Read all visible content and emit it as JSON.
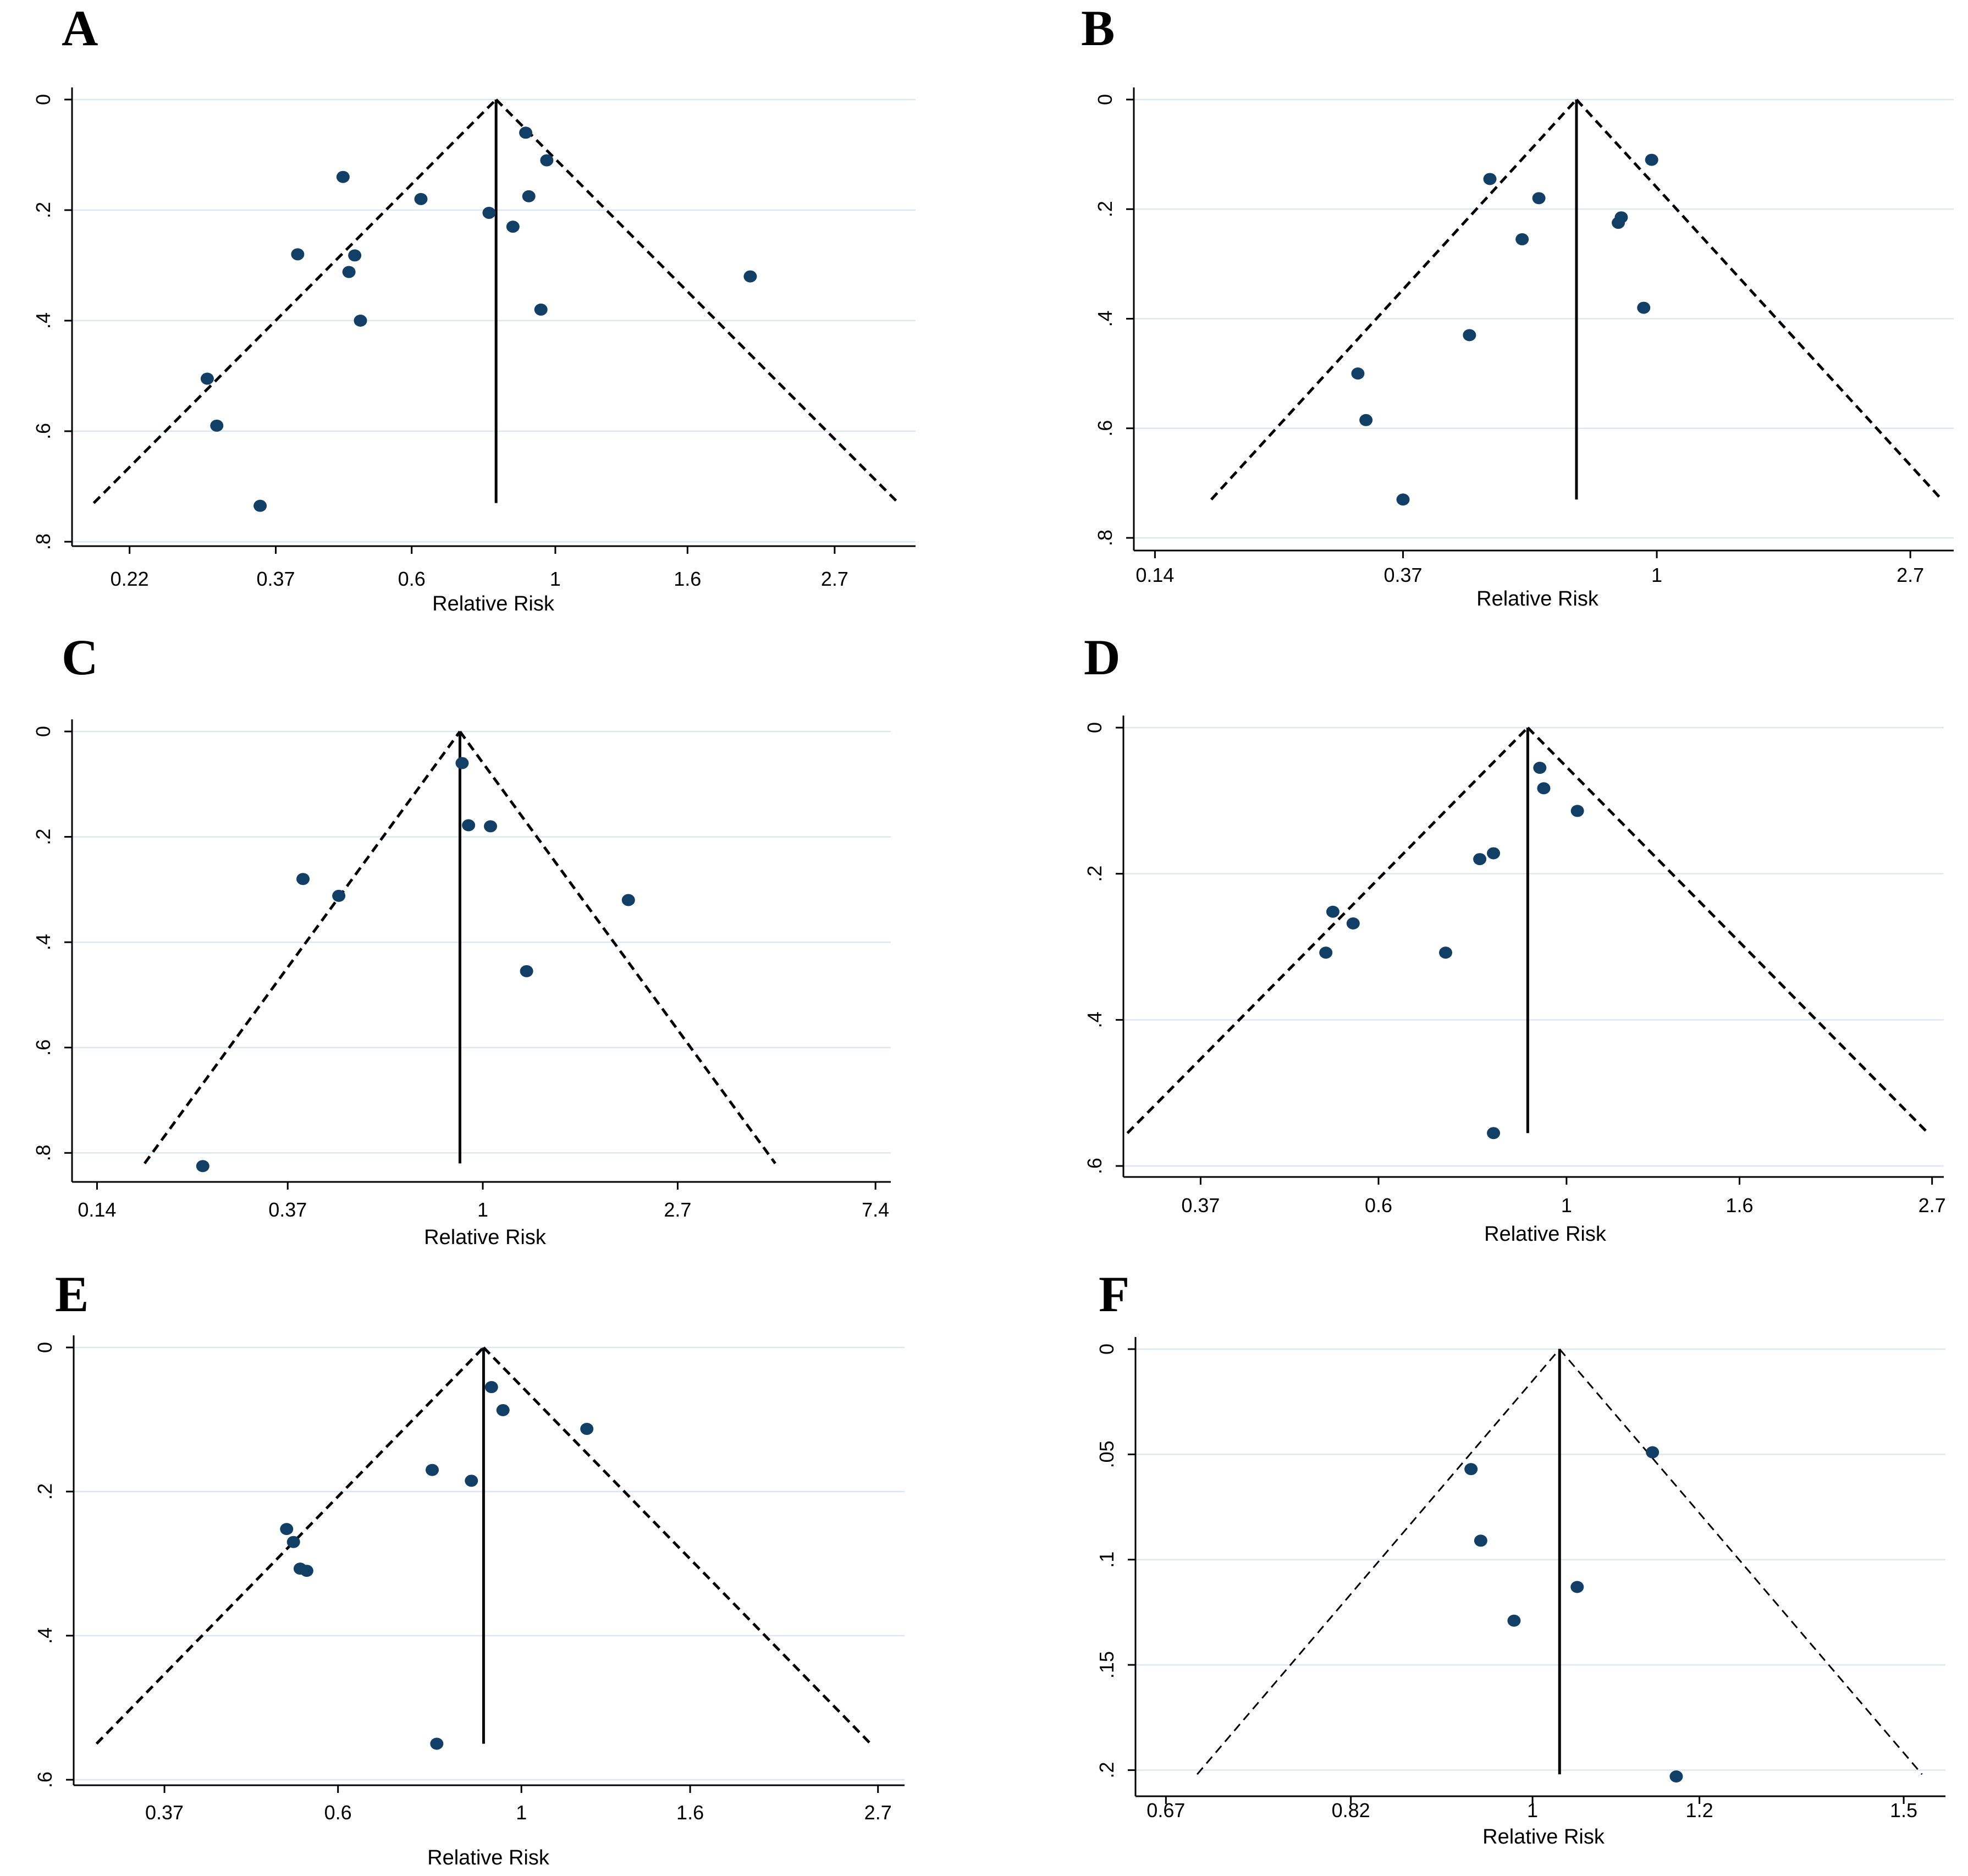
{
  "chart_data": [
    {
      "type": "scatter",
      "panel": "A",
      "xlabel": "Relative Risk",
      "ylabel": "",
      "x_scale": "log",
      "x_ticks": [
        {
          "value": 0.22,
          "label": "0.22"
        },
        {
          "value": 0.37,
          "label": "0.37"
        },
        {
          "value": 0.6,
          "label": "0.6"
        },
        {
          "value": 1,
          "label": "1"
        },
        {
          "value": 1.6,
          "label": "1.6"
        },
        {
          "value": 2.7,
          "label": "2.7"
        }
      ],
      "y_ticks": [
        {
          "value": 0,
          "label": "0"
        },
        {
          "value": 0.2,
          "label": ".2"
        },
        {
          "value": 0.4,
          "label": ".4"
        },
        {
          "value": 0.6,
          "label": ".6"
        },
        {
          "value": 0.8,
          "label": ".8"
        }
      ],
      "xlim": [
        0.18,
        3.6
      ],
      "ylim": [
        0,
        0.8
      ],
      "pooled_rr": 0.81,
      "funnel_max_se": 0.73,
      "points": [
        {
          "x": 0.9,
          "y": 0.06
        },
        {
          "x": 0.97,
          "y": 0.11
        },
        {
          "x": 0.47,
          "y": 0.14
        },
        {
          "x": 0.62,
          "y": 0.18
        },
        {
          "x": 0.91,
          "y": 0.175
        },
        {
          "x": 0.79,
          "y": 0.205
        },
        {
          "x": 0.86,
          "y": 0.23
        },
        {
          "x": 0.4,
          "y": 0.28
        },
        {
          "x": 0.49,
          "y": 0.282
        },
        {
          "x": 0.48,
          "y": 0.312
        },
        {
          "x": 2.0,
          "y": 0.32
        },
        {
          "x": 0.95,
          "y": 0.38
        },
        {
          "x": 0.5,
          "y": 0.4
        },
        {
          "x": 0.29,
          "y": 0.505
        },
        {
          "x": 0.3,
          "y": 0.59
        },
        {
          "x": 0.35,
          "y": 0.735
        }
      ]
    },
    {
      "type": "scatter",
      "panel": "B",
      "xlabel": "Relative Risk",
      "ylabel": "",
      "x_scale": "log",
      "x_ticks": [
        {
          "value": 0.14,
          "label": "0.14"
        },
        {
          "value": 0.37,
          "label": "0.37"
        },
        {
          "value": 1,
          "label": "1"
        },
        {
          "value": 2.7,
          "label": "2.7"
        }
      ],
      "y_ticks": [
        {
          "value": 0,
          "label": "0"
        },
        {
          "value": 0.2,
          "label": ".2"
        },
        {
          "value": 0.4,
          "label": ".4"
        },
        {
          "value": 0.6,
          "label": ".6"
        },
        {
          "value": 0.8,
          "label": ".8"
        }
      ],
      "xlim": [
        0.13,
        3.2
      ],
      "ylim": [
        0,
        0.8
      ],
      "pooled_rr": 0.73,
      "funnel_max_se": 0.73,
      "points": [
        {
          "x": 0.98,
          "y": 0.11
        },
        {
          "x": 0.52,
          "y": 0.145
        },
        {
          "x": 0.63,
          "y": 0.18
        },
        {
          "x": 0.87,
          "y": 0.215
        },
        {
          "x": 0.86,
          "y": 0.225
        },
        {
          "x": 0.59,
          "y": 0.255
        },
        {
          "x": 0.95,
          "y": 0.38
        },
        {
          "x": 0.48,
          "y": 0.43
        },
        {
          "x": 0.31,
          "y": 0.5
        },
        {
          "x": 0.32,
          "y": 0.585
        },
        {
          "x": 0.37,
          "y": 0.73
        }
      ]
    },
    {
      "type": "scatter",
      "panel": "C",
      "xlabel": "Relative Risk",
      "ylabel": "",
      "x_scale": "log",
      "x_ticks": [
        {
          "value": 0.14,
          "label": "0.14"
        },
        {
          "value": 0.37,
          "label": "0.37"
        },
        {
          "value": 1,
          "label": "1"
        },
        {
          "value": 2.7,
          "label": "2.7"
        },
        {
          "value": 7.4,
          "label": "7.4"
        }
      ],
      "y_ticks": [
        {
          "value": 0,
          "label": "0"
        },
        {
          "value": 0.2,
          "label": ".2"
        },
        {
          "value": 0.4,
          "label": ".4"
        },
        {
          "value": 0.6,
          "label": ".6"
        },
        {
          "value": 0.8,
          "label": ".8"
        }
      ],
      "xlim": [
        0.13,
        8.0
      ],
      "ylim": [
        0,
        0.83
      ],
      "pooled_rr": 0.89,
      "funnel_max_se": 0.82,
      "points": [
        {
          "x": 0.9,
          "y": 0.06
        },
        {
          "x": 0.93,
          "y": 0.178
        },
        {
          "x": 1.04,
          "y": 0.18
        },
        {
          "x": 0.4,
          "y": 0.28
        },
        {
          "x": 0.48,
          "y": 0.312
        },
        {
          "x": 2.1,
          "y": 0.32
        },
        {
          "x": 1.25,
          "y": 0.455
        },
        {
          "x": 0.24,
          "y": 0.825
        }
      ]
    },
    {
      "type": "scatter",
      "panel": "D",
      "xlabel": "Relative Risk",
      "ylabel": "",
      "x_scale": "log",
      "x_ticks": [
        {
          "value": 0.37,
          "label": "0.37"
        },
        {
          "value": 0.6,
          "label": "0.6"
        },
        {
          "value": 1,
          "label": "1"
        },
        {
          "value": 1.6,
          "label": "1.6"
        },
        {
          "value": 2.7,
          "label": "2.7"
        }
      ],
      "y_ticks": [
        {
          "value": 0,
          "label": "0"
        },
        {
          "value": 0.2,
          "label": ".2"
        },
        {
          "value": 0.4,
          "label": ".4"
        },
        {
          "value": 0.6,
          "label": ".6"
        }
      ],
      "xlim": [
        0.31,
        2.8
      ],
      "ylim": [
        0,
        0.6
      ],
      "pooled_rr": 0.9,
      "funnel_max_se": 0.555,
      "points": [
        {
          "x": 0.93,
          "y": 0.055
        },
        {
          "x": 0.94,
          "y": 0.083
        },
        {
          "x": 1.03,
          "y": 0.114
        },
        {
          "x": 0.82,
          "y": 0.172
        },
        {
          "x": 0.79,
          "y": 0.18
        },
        {
          "x": 0.53,
          "y": 0.252
        },
        {
          "x": 0.56,
          "y": 0.268
        },
        {
          "x": 0.52,
          "y": 0.308
        },
        {
          "x": 0.72,
          "y": 0.308
        },
        {
          "x": 0.82,
          "y": 0.555
        }
      ]
    },
    {
      "type": "scatter",
      "panel": "E",
      "xlabel": "Relative Risk",
      "ylabel": "",
      "x_scale": "log",
      "x_ticks": [
        {
          "value": 0.37,
          "label": "0.37"
        },
        {
          "value": 0.6,
          "label": "0.6"
        },
        {
          "value": 1,
          "label": "1"
        },
        {
          "value": 1.6,
          "label": "1.6"
        },
        {
          "value": 2.7,
          "label": "2.7"
        }
      ],
      "y_ticks": [
        {
          "value": 0,
          "label": "0"
        },
        {
          "value": 0.2,
          "label": ".2"
        },
        {
          "value": 0.4,
          "label": ".4"
        },
        {
          "value": 0.6,
          "label": ".6"
        }
      ],
      "xlim": [
        0.29,
        2.85
      ],
      "ylim": [
        0,
        0.6
      ],
      "pooled_rr": 0.9,
      "funnel_max_se": 0.55,
      "points": [
        {
          "x": 0.92,
          "y": 0.055
        },
        {
          "x": 0.95,
          "y": 0.087
        },
        {
          "x": 1.2,
          "y": 0.113
        },
        {
          "x": 0.78,
          "y": 0.17
        },
        {
          "x": 0.87,
          "y": 0.185
        },
        {
          "x": 0.52,
          "y": 0.252
        },
        {
          "x": 0.53,
          "y": 0.27
        },
        {
          "x": 0.54,
          "y": 0.307
        },
        {
          "x": 0.55,
          "y": 0.31
        },
        {
          "x": 0.79,
          "y": 0.55
        }
      ]
    },
    {
      "type": "scatter",
      "panel": "F",
      "xlabel": "Relative Risk",
      "ylabel": "",
      "x_scale": "log",
      "x_ticks": [
        {
          "value": 0.67,
          "label": "0.67"
        },
        {
          "value": 0.82,
          "label": "0.82"
        },
        {
          "value": 1,
          "label": "1"
        },
        {
          "value": 1.2,
          "label": "1.2"
        },
        {
          "value": 1.5,
          "label": "1.5"
        }
      ],
      "y_ticks": [
        {
          "value": 0,
          "label": "0"
        },
        {
          "value": 0.05,
          "label": ".05"
        },
        {
          "value": 0.1,
          "label": ".1"
        },
        {
          "value": 0.15,
          "label": ".15"
        },
        {
          "value": 0.2,
          "label": ".2"
        }
      ],
      "xlim": [
        0.652,
        1.57
      ],
      "ylim": [
        0,
        0.203
      ],
      "pooled_rr": 1.03,
      "funnel_max_se": 0.202,
      "points": [
        {
          "x": 1.14,
          "y": 0.049
        },
        {
          "x": 0.935,
          "y": 0.057
        },
        {
          "x": 0.945,
          "y": 0.091
        },
        {
          "x": 1.05,
          "y": 0.113
        },
        {
          "x": 0.98,
          "y": 0.129
        },
        {
          "x": 1.17,
          "y": 0.203
        }
      ]
    }
  ]
}
